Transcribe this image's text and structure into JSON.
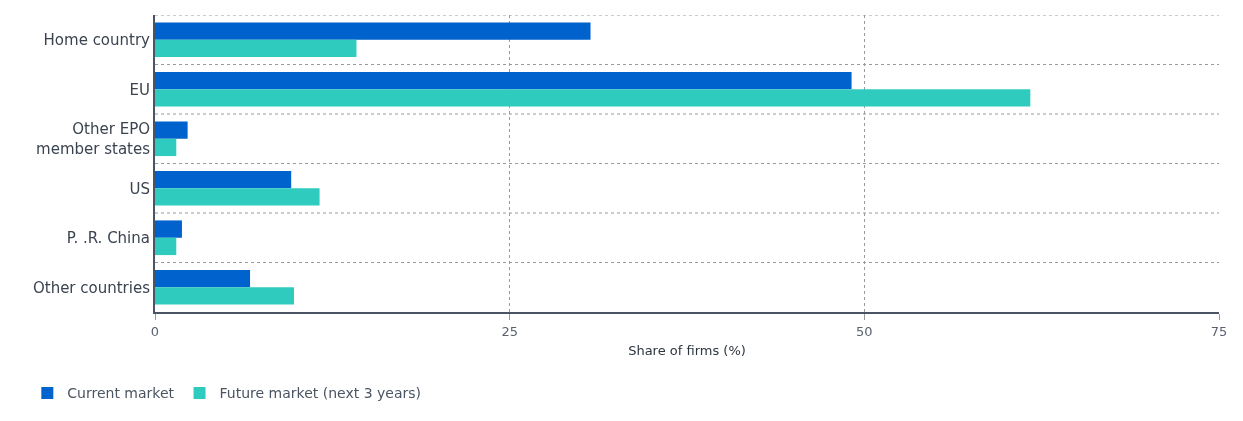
{
  "chart_data": {
    "type": "bar",
    "orientation": "horizontal",
    "xlabel": "Share of firms (%)",
    "categories": [
      "Home country",
      "EU",
      "Other EPO\nmember states",
      "US",
      "P. .R. China",
      "Other countries"
    ],
    "series": [
      {
        "name": "Current market",
        "color": "#0062cc",
        "values": [
          30.7,
          49.1,
          2.3,
          9.6,
          1.9,
          6.7
        ]
      },
      {
        "name": "Future market (next 3 years)",
        "color": "#2fcbbf",
        "values": [
          14.2,
          61.7,
          1.5,
          11.6,
          1.5,
          9.8
        ]
      }
    ],
    "xlim": [
      0,
      75
    ],
    "xticks": [
      0,
      25,
      50,
      75
    ],
    "grid": true,
    "legend": "bottom left"
  }
}
